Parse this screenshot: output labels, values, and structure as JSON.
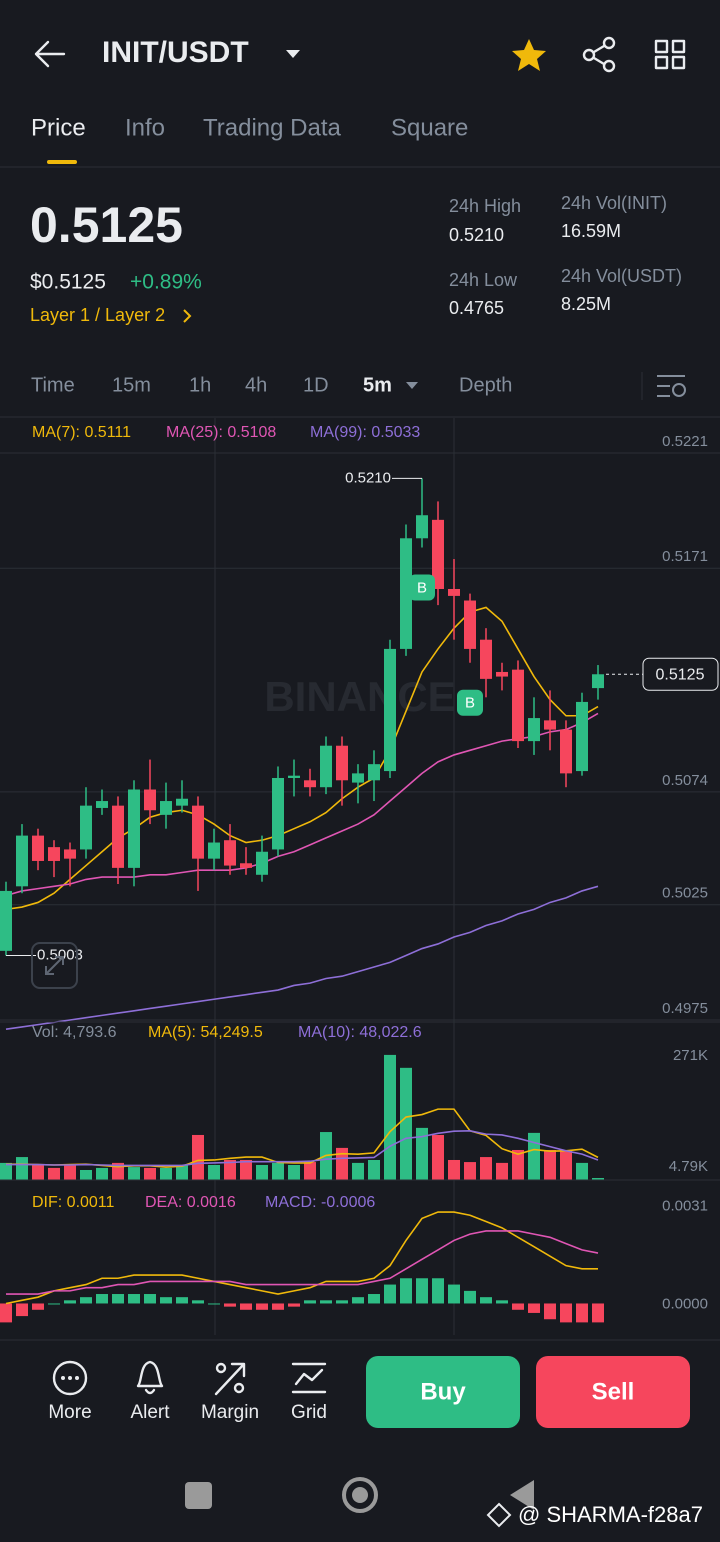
{
  "header": {
    "title": "INIT/USDT"
  },
  "tabs": [
    "Price",
    "Info",
    "Trading Data",
    "Square"
  ],
  "ticker": {
    "price": "0.5125",
    "usd_price": "$0.5125",
    "change": "+0.89%",
    "tags": "Layer 1 / Layer 2"
  },
  "stats": [
    {
      "label": "24h High",
      "value": "0.5210"
    },
    {
      "label": "24h Low",
      "value": "0.4765"
    },
    {
      "label": "24h Vol(INIT)",
      "value": "16.59M"
    },
    {
      "label": "24h Vol(USDT)",
      "value": "8.25M"
    }
  ],
  "intervals": [
    "Time",
    "15m",
    "1h",
    "4h",
    "1D",
    "5m",
    "Depth"
  ],
  "toolbar": [
    "More",
    "Alert",
    "Margin",
    "Grid"
  ],
  "actions": {
    "buy": "Buy",
    "sell": "Sell"
  },
  "watermark": "BINANCE",
  "footer": "@ SHARMA-f28a7",
  "chart_data": [
    {
      "type": "candlestick",
      "categories": [
        null,
        null,
        null,
        null,
        null,
        null,
        null,
        null,
        null,
        null,
        null,
        null,
        null,
        null,
        null,
        null,
        null,
        null,
        null,
        null,
        null,
        null,
        null,
        null,
        null,
        null,
        null,
        null,
        null,
        null,
        null,
        null,
        null,
        null,
        null,
        null,
        null,
        null
      ],
      "open": [
        0.5005,
        0.5033,
        0.5055,
        0.505,
        0.5049,
        0.5049,
        0.5067,
        0.5068,
        0.5041,
        0.5075,
        0.5064,
        0.5068,
        0.5068,
        0.5045,
        0.5053,
        0.5043,
        0.5038,
        0.5049,
        0.508,
        0.5079,
        0.5076,
        0.5094,
        0.5078,
        0.5079,
        0.5083,
        0.5136,
        0.5184,
        0.5192,
        0.5162,
        0.5157,
        0.514,
        0.5126,
        0.5127,
        0.5096,
        0.5105,
        0.5101,
        0.5083,
        0.5119
      ],
      "high": [
        0.5035,
        0.506,
        0.5058,
        0.5053,
        0.5052,
        0.5076,
        0.5075,
        0.5072,
        0.5079,
        0.5088,
        0.5078,
        0.5079,
        0.5072,
        0.5058,
        0.506,
        0.505,
        0.5055,
        0.5085,
        0.5088,
        0.5084,
        0.5098,
        0.5098,
        0.5086,
        0.5092,
        0.514,
        0.519,
        0.521,
        0.52,
        0.5175,
        0.516,
        0.5145,
        0.513,
        0.5131,
        0.5115,
        0.5118,
        0.5105,
        0.5117,
        0.5129
      ],
      "low": [
        0.5003,
        0.503,
        0.504,
        0.5037,
        0.5033,
        0.5045,
        0.5064,
        0.5034,
        0.5033,
        0.506,
        0.5058,
        0.5065,
        0.5031,
        0.504,
        0.5038,
        0.5038,
        0.5035,
        0.5046,
        0.5072,
        0.5072,
        0.5073,
        0.5068,
        0.5069,
        0.507,
        0.508,
        0.5133,
        0.518,
        0.5155,
        0.514,
        0.513,
        0.5115,
        0.5118,
        0.5093,
        0.509,
        0.5092,
        0.5076,
        0.5081,
        0.5114
      ],
      "close": [
        0.5031,
        0.5055,
        0.5044,
        0.5044,
        0.5045,
        0.5068,
        0.507,
        0.5041,
        0.5075,
        0.5066,
        0.507,
        0.5071,
        0.5045,
        0.5052,
        0.5042,
        0.5041,
        0.5048,
        0.508,
        0.5081,
        0.5076,
        0.5094,
        0.5079,
        0.5082,
        0.5086,
        0.5136,
        0.5184,
        0.5194,
        0.5162,
        0.5159,
        0.5136,
        0.5123,
        0.5124,
        0.5096,
        0.5106,
        0.5101,
        0.5082,
        0.5113,
        0.5125
      ],
      "up_color": "#2ebd85",
      "down_color": "#f6465d",
      "lines": [
        {
          "name": "MA(7): 0.5111",
          "color": "#f0b90b",
          "values": [
            0.5023,
            0.5024,
            0.5026,
            0.503,
            0.5036,
            0.5042,
            0.5048,
            0.5054,
            0.5058,
            0.5063,
            0.5065,
            0.5066,
            0.5064,
            0.506,
            0.5055,
            0.5052,
            0.5053,
            0.5055,
            0.5058,
            0.5061,
            0.5065,
            0.5071,
            0.5076,
            0.508,
            0.5092,
            0.5109,
            0.5126,
            0.5136,
            0.5145,
            0.5152,
            0.5154,
            0.5148,
            0.5136,
            0.5124,
            0.5114,
            0.5107,
            0.5107,
            0.5111
          ]
        },
        {
          "name": "MA(25): 0.5108",
          "color": "#e056b4",
          "values": [
            0.5029,
            0.5031,
            0.5032,
            0.5033,
            0.5034,
            0.5036,
            0.5037,
            0.5037,
            0.5037,
            0.5038,
            0.5038,
            0.5039,
            0.504,
            0.504,
            0.504,
            0.5041,
            0.5043,
            0.5046,
            0.5048,
            0.5051,
            0.5054,
            0.5057,
            0.506,
            0.5064,
            0.507,
            0.5076,
            0.5082,
            0.5087,
            0.509,
            0.5092,
            0.5094,
            0.5096,
            0.5097,
            0.5098,
            0.51,
            0.5101,
            0.5104,
            0.5108
          ]
        },
        {
          "name": "MA(99): 0.5033",
          "color": "#8e6fd8",
          "values": [
            0.4971,
            0.4972,
            0.4973,
            0.4974,
            0.4975,
            0.4976,
            0.4977,
            0.4978,
            0.4979,
            0.498,
            0.4981,
            0.4982,
            0.4983,
            0.4984,
            0.4985,
            0.4986,
            0.4987,
            0.4988,
            0.499,
            0.4991,
            0.4993,
            0.4994,
            0.4996,
            0.4998,
            0.5,
            0.5003,
            0.5006,
            0.5008,
            0.5011,
            0.5013,
            0.5016,
            0.5018,
            0.5021,
            0.5023,
            0.5026,
            0.5028,
            0.5031,
            0.5033
          ]
        }
      ],
      "ylim": [
        0.4975,
        0.5221
      ],
      "yticks": [
        0.4975,
        0.5025,
        0.5074,
        0.5171,
        0.5221
      ],
      "grid": true,
      "last_price": 0.5125,
      "high_label": {
        "value": 0.521,
        "label": "0.5210"
      },
      "low_label": {
        "value": 0.5003,
        "label": "0.5003"
      },
      "trade_marks": [
        {
          "index": 26,
          "label": "B"
        },
        {
          "index": 29,
          "label": "B"
        }
      ]
    },
    {
      "type": "volume",
      "bars": {
        "name": "Vol: 4,793.6",
        "values": [
          41000,
          55000,
          36000,
          29000,
          36000,
          24000,
          29000,
          41000,
          31000,
          29000,
          29000,
          36000,
          108000,
          36000,
          48000,
          48000,
          36000,
          41000,
          36000,
          43000,
          115000,
          77000,
          41000,
          48000,
          300000,
          269000,
          125000,
          108000,
          48000,
          43000,
          55000,
          41000,
          72000,
          113000,
          72000,
          72000,
          41000,
          4793.6
        ]
      },
      "lines": [
        {
          "name": "MA(5): 54,249.5",
          "color": "#f0b90b",
          "values": [
            38000,
            38000,
            37000,
            36000,
            37000,
            38000,
            35000,
            32000,
            34000,
            34000,
            31000,
            33000,
            47000,
            48000,
            52000,
            55000,
            55000,
            42000,
            41000,
            41000,
            59000,
            63000,
            62000,
            65000,
            116000,
            151000,
            157000,
            170000,
            170000,
            118000,
            107000,
            75000,
            62000,
            73000,
            69000,
            70000,
            74000,
            54249.5
          ]
        },
        {
          "name": "MA(10): 48,022.6",
          "color": "#8e6fd8",
          "values": [
            37000,
            37000,
            37000,
            36000,
            36000,
            37000,
            36000,
            35000,
            35000,
            35000,
            35000,
            35000,
            40000,
            41000,
            42000,
            44000,
            44000,
            44000,
            44000,
            45000,
            50000,
            52000,
            53000,
            54000,
            81000,
            100000,
            104000,
            112000,
            117000,
            118000,
            110000,
            108000,
            100000,
            90000,
            80000,
            70000,
            62000,
            48022.6
          ]
        }
      ],
      "ylim": [
        0,
        271000
      ],
      "yticks": [
        {
          "value": 4790,
          "label": "4.79K"
        },
        {
          "value": 271000,
          "label": "271K"
        }
      ]
    },
    {
      "type": "macd",
      "lines": [
        {
          "name": "DIF: 0.0011",
          "color": "#f0b90b",
          "values": [
            0.0,
            0.0001,
            0.0002,
            0.0004,
            0.0005,
            0.0006,
            0.0008,
            0.0008,
            0.0009,
            0.0009,
            0.0009,
            0.0009,
            0.0008,
            0.0007,
            0.0006,
            0.0005,
            0.0004,
            0.0003,
            0.0004,
            0.0005,
            0.0007,
            0.0007,
            0.0007,
            0.0008,
            0.0012,
            0.002,
            0.0027,
            0.0029,
            0.0029,
            0.0028,
            0.0026,
            0.0024,
            0.0021,
            0.0018,
            0.0015,
            0.0012,
            0.0011,
            0.0011
          ]
        },
        {
          "name": "DEA: 0.0016",
          "color": "#e056b4",
          "values": [
            0.0003,
            0.0003,
            0.0003,
            0.0004,
            0.0004,
            0.0005,
            0.0005,
            0.0006,
            0.0006,
            0.0007,
            0.0007,
            0.0007,
            0.0007,
            0.0007,
            0.0007,
            0.0006,
            0.0006,
            0.0006,
            0.0006,
            0.0006,
            0.0006,
            0.0006,
            0.0006,
            0.0007,
            0.0008,
            0.0011,
            0.0014,
            0.0017,
            0.002,
            0.0022,
            0.0023,
            0.0023,
            0.0023,
            0.0022,
            0.0021,
            0.0019,
            0.0017,
            0.0016
          ]
        }
      ],
      "bars": {
        "name": "MACD: -0.0006",
        "color": "#8e6fd8",
        "values": [
          -0.0006,
          -0.0004,
          -0.0002,
          0.0,
          0.0001,
          0.0002,
          0.0003,
          0.0003,
          0.0003,
          0.0003,
          0.0002,
          0.0002,
          0.0001,
          0.0,
          -0.0001,
          -0.0002,
          -0.0002,
          -0.0002,
          -0.0001,
          0.0001,
          0.0001,
          0.0001,
          0.0002,
          0.0003,
          0.0006,
          0.0008,
          0.0008,
          0.0008,
          0.0006,
          0.0004,
          0.0002,
          0.0001,
          -0.0002,
          -0.0003,
          -0.0005,
          -0.0006,
          -0.0006,
          -0.0006
        ]
      },
      "ylim": [
        -0.001,
        0.0036
      ],
      "yticks": [
        {
          "value": 0,
          "label": "0.0000"
        },
        0.0031
      ]
    }
  ]
}
